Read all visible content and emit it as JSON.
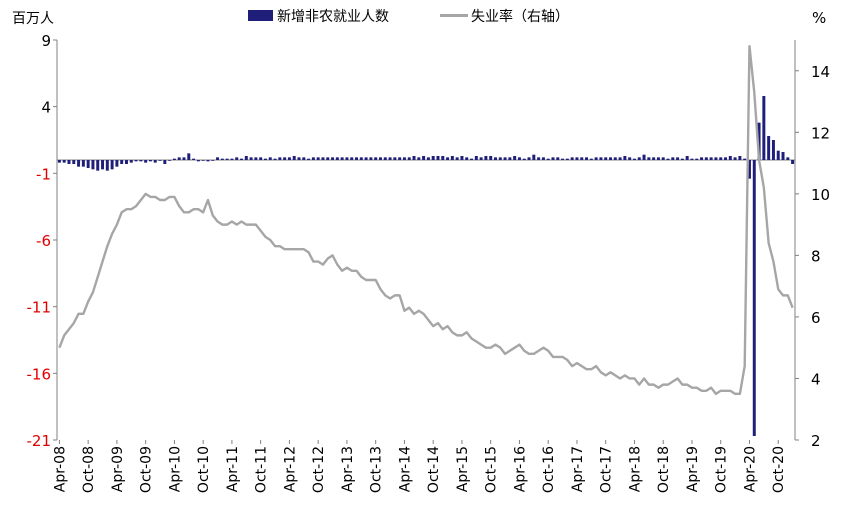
{
  "chart_data": {
    "type": "bar+line",
    "legend": {
      "position": "top-center",
      "entries": [
        {
          "name": "新增非农就业人数",
          "color": "#1f1f7a",
          "kind": "bar"
        },
        {
          "name": "失业率（右轴）",
          "color": "#a6a6a6",
          "kind": "line"
        }
      ]
    },
    "left_axis": {
      "unit": "百万人",
      "min": -21,
      "max": 9,
      "ticks": [
        "9",
        "4",
        "-1",
        "-6",
        "-11",
        "-16",
        "-21"
      ],
      "tick_values": [
        9,
        4,
        -1,
        -6,
        -11,
        -16,
        -21
      ],
      "negative_color": "#e00000"
    },
    "right_axis": {
      "unit": "%",
      "min": 2,
      "max": 15,
      "ticks": [
        "14",
        "12",
        "10",
        "8",
        "6",
        "4",
        "2"
      ],
      "tick_values": [
        14,
        12,
        10,
        8,
        6,
        4,
        2
      ]
    },
    "x_ticks": [
      "Apr-08",
      "Oct-08",
      "Apr-09",
      "Oct-09",
      "Apr-10",
      "Oct-10",
      "Apr-11",
      "Oct-11",
      "Apr-12",
      "Oct-12",
      "Apr-13",
      "Oct-13",
      "Apr-14",
      "Oct-14",
      "Apr-15",
      "Oct-15",
      "Apr-16",
      "Oct-16",
      "Apr-17",
      "Oct-17",
      "Apr-18",
      "Oct-18",
      "Apr-19",
      "Oct-19",
      "Apr-20",
      "Oct-20"
    ],
    "period": {
      "start": "2008-04",
      "end": "2021-01"
    },
    "series": [
      {
        "name": "新增非农就业人数",
        "type": "bar",
        "axis": "left",
        "values": [
          -0.2,
          -0.2,
          -0.3,
          -0.3,
          -0.5,
          -0.5,
          -0.6,
          -0.7,
          -0.8,
          -0.7,
          -0.8,
          -0.7,
          -0.5,
          -0.3,
          -0.3,
          -0.2,
          -0.1,
          -0.1,
          -0.2,
          -0.1,
          -0.2,
          0.0,
          -0.3,
          0.0,
          0.1,
          0.2,
          0.2,
          0.5,
          0.1,
          -0.1,
          0.0,
          -0.1,
          0.0,
          0.2,
          0.1,
          0.1,
          0.1,
          0.2,
          0.1,
          0.3,
          0.2,
          0.2,
          0.2,
          0.1,
          0.2,
          0.1,
          0.2,
          0.2,
          0.2,
          0.3,
          0.2,
          0.2,
          0.1,
          0.2,
          0.2,
          0.2,
          0.2,
          0.2,
          0.2,
          0.2,
          0.2,
          0.2,
          0.2,
          0.2,
          0.2,
          0.2,
          0.2,
          0.2,
          0.2,
          0.2,
          0.2,
          0.2,
          0.2,
          0.2,
          0.3,
          0.2,
          0.3,
          0.2,
          0.3,
          0.3,
          0.3,
          0.2,
          0.3,
          0.2,
          0.3,
          0.2,
          0.1,
          0.3,
          0.2,
          0.3,
          0.3,
          0.2,
          0.2,
          0.2,
          0.2,
          0.3,
          0.2,
          0.1,
          0.2,
          0.4,
          0.2,
          0.2,
          0.1,
          0.2,
          0.2,
          0.1,
          0.1,
          0.2,
          0.2,
          0.2,
          0.2,
          0.1,
          0.2,
          0.2,
          0.2,
          0.2,
          0.2,
          0.2,
          0.3,
          0.2,
          0.1,
          0.2,
          0.4,
          0.2,
          0.2,
          0.2,
          0.2,
          0.1,
          0.2,
          0.2,
          0.1,
          0.3,
          0.1,
          0.1,
          0.2,
          0.2,
          0.2,
          0.2,
          0.2,
          0.2,
          0.3,
          0.2,
          0.3,
          0.1,
          -1.4,
          -20.7,
          2.8,
          4.8,
          1.8,
          1.5,
          0.7,
          0.6,
          0.2,
          -0.3
        ]
      },
      {
        "name": "失业率（右轴）",
        "type": "line",
        "axis": "right",
        "values": [
          5.0,
          5.4,
          5.6,
          5.8,
          6.1,
          6.1,
          6.5,
          6.8,
          7.3,
          7.8,
          8.3,
          8.7,
          9.0,
          9.4,
          9.5,
          9.5,
          9.6,
          9.8,
          10.0,
          9.9,
          9.9,
          9.8,
          9.8,
          9.9,
          9.9,
          9.6,
          9.4,
          9.4,
          9.5,
          9.5,
          9.4,
          9.8,
          9.3,
          9.1,
          9.0,
          9.0,
          9.1,
          9.0,
          9.1,
          9.0,
          9.0,
          9.0,
          8.8,
          8.6,
          8.5,
          8.3,
          8.3,
          8.2,
          8.2,
          8.2,
          8.2,
          8.2,
          8.1,
          7.8,
          7.8,
          7.7,
          7.9,
          8.0,
          7.7,
          7.5,
          7.6,
          7.5,
          7.5,
          7.3,
          7.2,
          7.2,
          7.2,
          6.9,
          6.7,
          6.6,
          6.7,
          6.7,
          6.2,
          6.3,
          6.1,
          6.2,
          6.1,
          5.9,
          5.7,
          5.8,
          5.6,
          5.7,
          5.5,
          5.4,
          5.4,
          5.5,
          5.3,
          5.2,
          5.1,
          5.0,
          5.0,
          5.1,
          5.0,
          4.8,
          4.9,
          5.0,
          5.1,
          4.9,
          4.8,
          4.8,
          4.9,
          5.0,
          4.9,
          4.7,
          4.7,
          4.7,
          4.6,
          4.4,
          4.5,
          4.4,
          4.3,
          4.3,
          4.4,
          4.2,
          4.1,
          4.2,
          4.1,
          4.0,
          4.1,
          4.0,
          4.0,
          3.8,
          4.0,
          3.8,
          3.8,
          3.7,
          3.8,
          3.8,
          3.9,
          4.0,
          3.8,
          3.8,
          3.7,
          3.7,
          3.6,
          3.6,
          3.7,
          3.5,
          3.6,
          3.6,
          3.6,
          3.5,
          3.5,
          4.4,
          14.8,
          13.3,
          11.1,
          10.2,
          8.4,
          7.8,
          6.9,
          6.7,
          6.7,
          6.3
        ]
      }
    ]
  }
}
